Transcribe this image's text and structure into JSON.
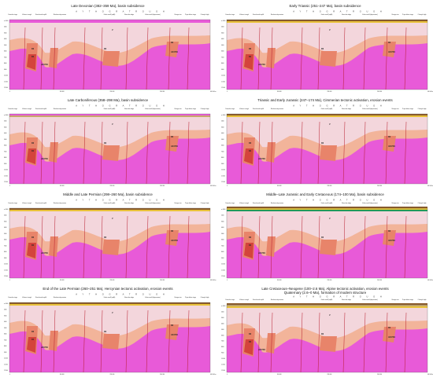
{
  "panels": [
    {
      "title": "Late Devonian (382–359 Ma), basin subsidence"
    },
    {
      "title": "Early Triassic (251–247 Ma), basin subsidence"
    },
    {
      "title": "Late Carboniferous (358–298 Ma), basin subsidence"
    },
    {
      "title": "Triassic and Early Jurassic (247–174 Ma), Cimmerian tectonic activation, erosion events"
    },
    {
      "title": "Middle and Late Permian (298–260 Ma), basin subsidence"
    },
    {
      "title": "Middle–Late Jurassic and Early Cretaceous (174–100 Ma), basin subsidence"
    },
    {
      "title": "End of the Late Permian (260–251 Ma), Hercynian tectonic activation, erosion events"
    },
    {
      "title": "Late Cretaceous–Neogene (100–2.6 Ma), Alpine tectonic activation, erosion events",
      "subtitle": "Quaternary (2.6–0 Ma), formation of modern structure"
    }
  ],
  "trough_label": "A Y T H O G R A T R O U G H",
  "structures": [
    "Yazovka stage",
    "Vishera trough",
    "Stanchevski uplift",
    "Nizshnia depression",
    "Kolva swell (uplift)",
    "Novo-bor ridge",
    "Kolva swell (depression)",
    "Vizinga rise",
    "Pripa-kolva stage",
    "Chernyh high"
  ],
  "unit_labels": {
    "top": "V",
    "a": "R3",
    "b": "R2",
    "c": "AR-PR1"
  },
  "depth_axis": [
    "m 1000",
    "2000",
    "3000",
    "4000",
    "5000",
    "6000",
    "7000",
    "8000",
    "9000",
    "10 000",
    "11 000",
    "12 000"
  ],
  "distance_axis": [
    "0",
    "100 000",
    "200 000",
    "300 000",
    "400 000 m"
  ],
  "colors": {
    "basement": "#e85ad8",
    "rift_dark": "#d4443c",
    "rift_mid": "#e8846a",
    "rift_light": "#f2b49a",
    "fill": "#f3d6dc",
    "fault": "#b81c2c",
    "sed_yellow": "#e8c23a",
    "sed_green": "#1f9a5a",
    "sed_brown": "#8a5a2a",
    "sed_tan": "#c8a86a"
  }
}
